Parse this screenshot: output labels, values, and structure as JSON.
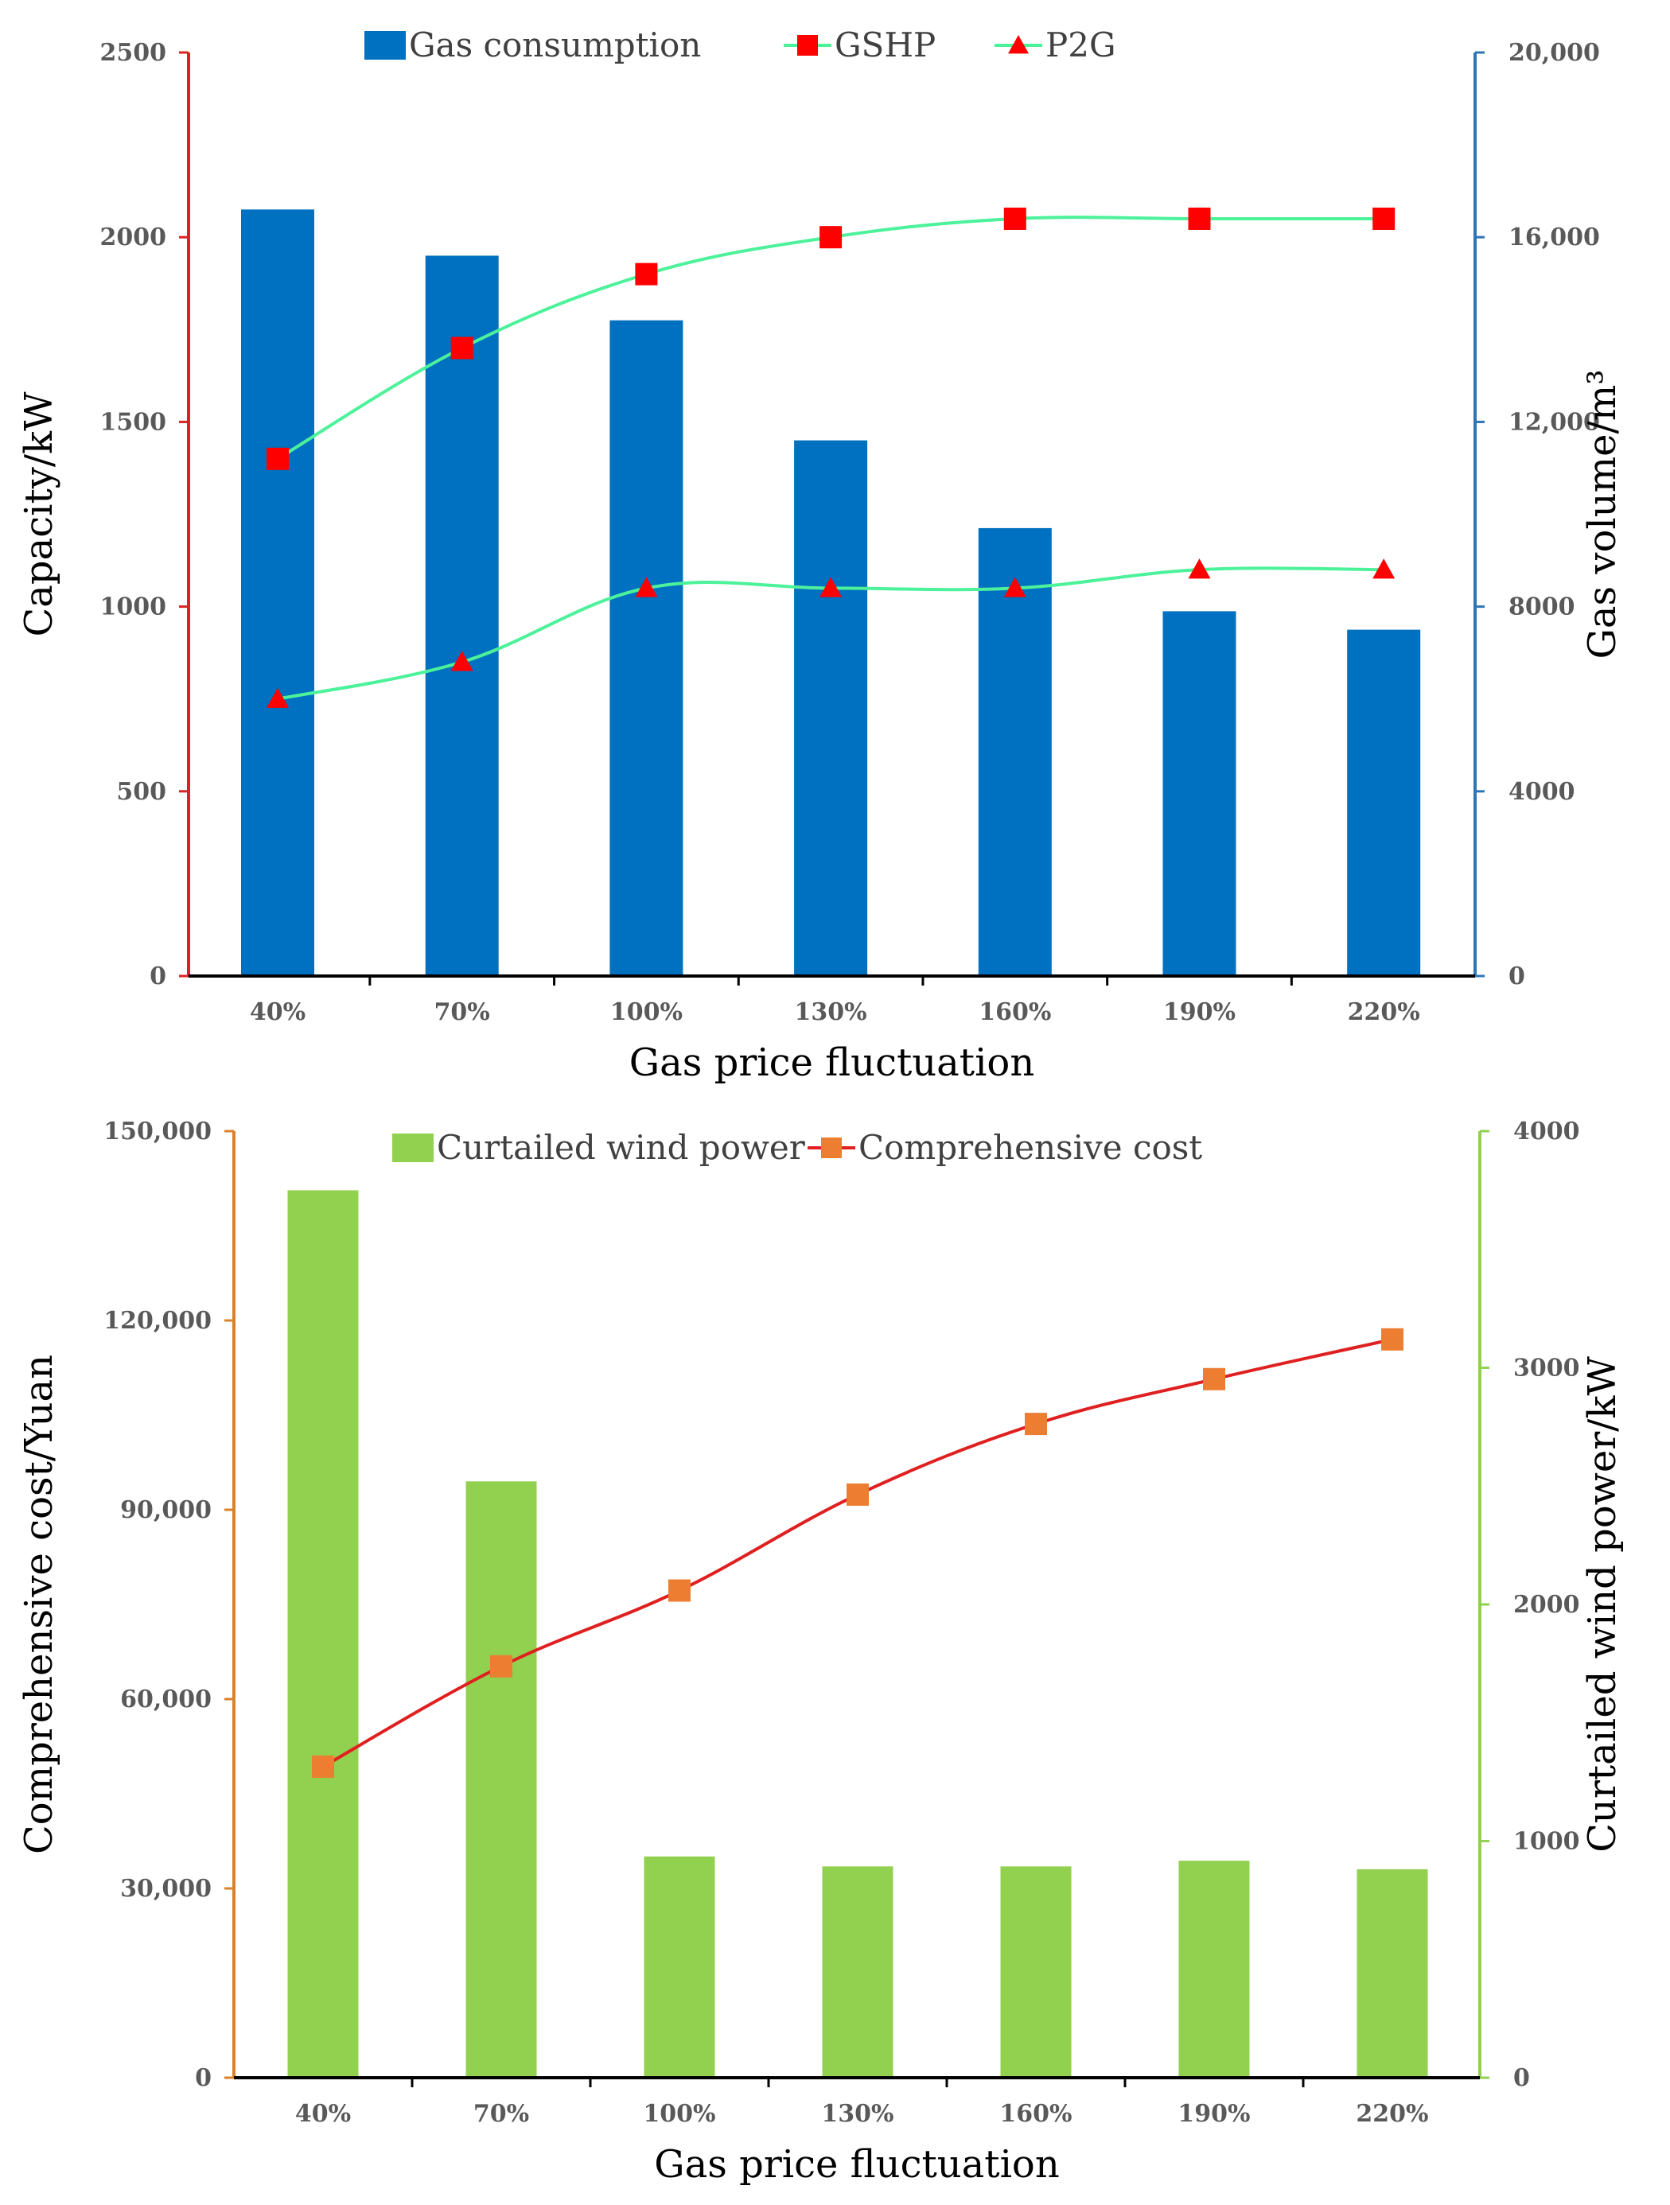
{
  "chart_data": [
    {
      "type": "bar+line",
      "title": "",
      "xlabel": "Gas price fluctuation",
      "ylabel": "Capacity/kW",
      "y2label": "Gas volume/m³",
      "categories": [
        "40%",
        "70%",
        "100%",
        "130%",
        "160%",
        "190%",
        "220%"
      ],
      "ylim": [
        0,
        2500
      ],
      "yticks": [
        0,
        500,
        1000,
        1500,
        2000,
        2500
      ],
      "ytick_labels": [
        "0",
        "500",
        "1000",
        "1500",
        "2000",
        "2500"
      ],
      "y2lim": [
        0,
        20000
      ],
      "y2ticks": [
        0,
        4000,
        8000,
        12000,
        16000,
        20000
      ],
      "y2tick_labels": [
        "0",
        "4000",
        "8000",
        "12,000",
        "16,000",
        "20,000"
      ],
      "legend_position": "top",
      "grid": false,
      "bars": {
        "name": "Gas consumption",
        "axis": "right",
        "color": "#0070C0",
        "values": [
          16600,
          15600,
          14200,
          11600,
          9700,
          7900,
          7500
        ]
      },
      "series": [
        {
          "name": "GSHP",
          "axis": "left",
          "line_color": "#4CF29A",
          "marker_color": "#FF0000",
          "marker": "square",
          "values": [
            1400,
            1700,
            1900,
            2000,
            2050,
            2050,
            2050
          ]
        },
        {
          "name": "P2G",
          "axis": "left",
          "line_color": "#4CF29A",
          "marker_color": "#FF0000",
          "marker": "triangle",
          "values": [
            750,
            850,
            1050,
            1050,
            1050,
            1100,
            1100
          ]
        }
      ],
      "left_axis_color": "#E0201E",
      "right_axis_color": "#2E75B6"
    },
    {
      "type": "bar+line",
      "title": "",
      "xlabel": "Gas price fluctuation",
      "ylabel": "Comprehensive cost/Yuan",
      "y2label": "Curtailed wind power/kW",
      "categories": [
        "40%",
        "70%",
        "100%",
        "130%",
        "160%",
        "190%",
        "220%"
      ],
      "ylim": [
        0,
        150000
      ],
      "yticks": [
        0,
        30000,
        60000,
        90000,
        120000,
        150000
      ],
      "ytick_labels": [
        "0",
        "30,000",
        "60,000",
        "90,000",
        "120,000",
        "150,000"
      ],
      "y2lim": [
        0,
        4000
      ],
      "y2ticks": [
        0,
        1000,
        2000,
        3000,
        4000
      ],
      "y2tick_labels": [
        "0",
        "1000",
        "2000",
        "3000",
        "4000"
      ],
      "legend_position": "top",
      "grid": false,
      "bars": {
        "name": "Curtailed wind power",
        "axis": "right",
        "color": "#92D050",
        "values": [
          3750,
          2520,
          935,
          893,
          893,
          917,
          881
        ]
      },
      "series": [
        {
          "name": "Comprehensive cost",
          "axis": "left",
          "line_color": "#E02020",
          "marker_color": "#ED7D31",
          "marker": "square",
          "values": [
            49300,
            65200,
            77200,
            92400,
            103600,
            110700,
            117000
          ]
        }
      ],
      "left_axis_color": "#D9822B",
      "right_axis_color": "#92D050"
    }
  ]
}
